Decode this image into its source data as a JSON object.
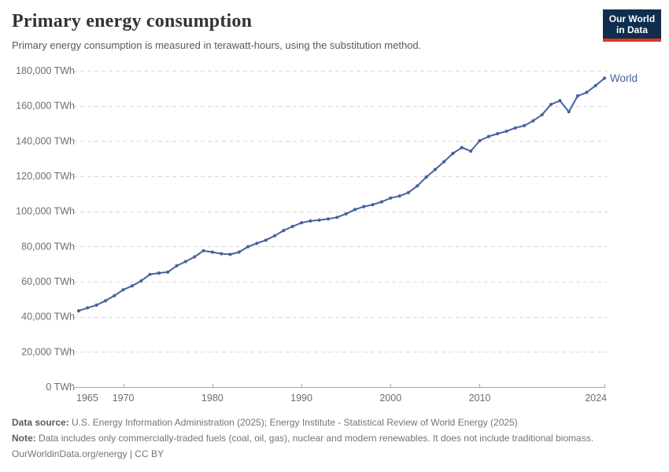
{
  "header": {
    "title": "Primary energy consumption",
    "subtitle": "Primary energy consumption is measured in terawatt-hours, using the substitution method."
  },
  "logo": {
    "line1": "Our World",
    "line2": "in Data",
    "bg_color": "#102e4e",
    "accent_color": "#dd3826"
  },
  "chart_data": {
    "type": "line",
    "title": "Primary energy consumption",
    "ylabel": "",
    "xlabel": "",
    "unit": "TWh",
    "grid": "horizontal-dashed",
    "legend_position": "end-of-line-label",
    "xlim": [
      1965,
      2024
    ],
    "ylim": [
      0,
      180000
    ],
    "x": [
      1965,
      1966,
      1967,
      1968,
      1969,
      1970,
      1971,
      1972,
      1973,
      1974,
      1975,
      1976,
      1977,
      1978,
      1979,
      1980,
      1981,
      1982,
      1983,
      1984,
      1985,
      1986,
      1987,
      1988,
      1989,
      1990,
      1991,
      1992,
      1993,
      1994,
      1995,
      1996,
      1997,
      1998,
      1999,
      2000,
      2001,
      2002,
      2003,
      2004,
      2005,
      2006,
      2007,
      2008,
      2009,
      2010,
      2011,
      2012,
      2013,
      2014,
      2015,
      2016,
      2017,
      2018,
      2019,
      2020,
      2021,
      2022,
      2023,
      2024
    ],
    "series": [
      {
        "name": "World",
        "color": "#44639c",
        "values": [
          43400,
          45100,
          46600,
          49100,
          52000,
          55400,
          57600,
          60400,
          64100,
          64900,
          65400,
          69000,
          71400,
          74100,
          77600,
          76800,
          75900,
          75500,
          76800,
          79900,
          81800,
          83600,
          86100,
          89100,
          91400,
          93500,
          94500,
          95000,
          95700,
          96600,
          98600,
          101000,
          102700,
          103800,
          105400,
          107600,
          108700,
          110700,
          114500,
          119500,
          123800,
          128300,
          133000,
          136300,
          134300,
          140200,
          142600,
          144200,
          145600,
          147500,
          148800,
          151500,
          155000,
          160900,
          163000,
          156700,
          165700,
          167700,
          171600,
          175800
        ]
      }
    ],
    "y_ticks": [
      {
        "value": 0,
        "label": "0 TWh"
      },
      {
        "value": 20000,
        "label": "20,000 TWh"
      },
      {
        "value": 40000,
        "label": "40,000 TWh"
      },
      {
        "value": 60000,
        "label": "60,000 TWh"
      },
      {
        "value": 80000,
        "label": "80,000 TWh"
      },
      {
        "value": 100000,
        "label": "100,000 TWh"
      },
      {
        "value": 120000,
        "label": "120,000 TWh"
      },
      {
        "value": 140000,
        "label": "140,000 TWh"
      },
      {
        "value": 160000,
        "label": "160,000 TWh"
      },
      {
        "value": 180000,
        "label": "180,000 TWh"
      }
    ],
    "x_ticks": [
      {
        "year": 1965,
        "label": "1965",
        "anchor": "start"
      },
      {
        "year": 1970,
        "label": "1970",
        "anchor": "middle"
      },
      {
        "year": 1980,
        "label": "1980",
        "anchor": "middle"
      },
      {
        "year": 1990,
        "label": "1990",
        "anchor": "middle"
      },
      {
        "year": 2000,
        "label": "2000",
        "anchor": "middle"
      },
      {
        "year": 2010,
        "label": "2010",
        "anchor": "middle"
      },
      {
        "year": 2024,
        "label": "2024",
        "anchor": "end"
      }
    ],
    "end_label": "World"
  },
  "footer": {
    "source_label": "Data source:",
    "source_text": " U.S. Energy Information Administration (2025); Energy Institute - Statistical Review of World Energy (2025)",
    "note_label": "Note:",
    "note_text": " Data includes only commercially-traded fuels (coal, oil, gas), nuclear and modern renewables. It does not include traditional biomass.",
    "credit": "OurWorldinData.org/energy | CC BY"
  }
}
